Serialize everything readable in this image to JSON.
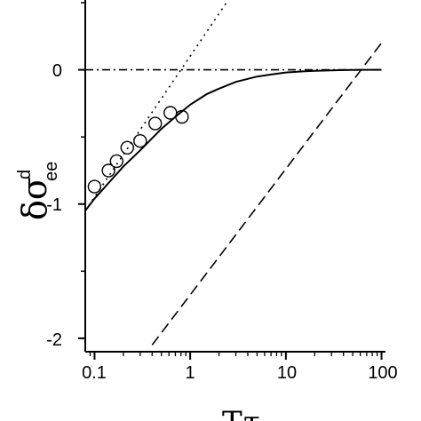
{
  "chart_data": {
    "type": "scatter",
    "title": "",
    "xlabel": {
      "main": "T",
      "symbol": "τ"
    },
    "ylabel": {
      "main": "δσ",
      "superscript": "d",
      "subscript": "ee"
    },
    "xscale": "log",
    "xlim": [
      0.08,
      110
    ],
    "ylim": [
      -2.1,
      0.52
    ],
    "xticks": [
      0.1,
      1,
      10,
      100
    ],
    "xtick_labels": [
      "0.1",
      "1",
      "10",
      "100"
    ],
    "yticks": [
      0,
      -1,
      -2
    ],
    "ytick_labels": [
      "0",
      "-1",
      "-2"
    ],
    "grid": false,
    "legend": "none",
    "series": [
      {
        "style": "markers",
        "marker": "open-circle",
        "x": [
          0.1,
          0.14,
          0.17,
          0.22,
          0.3,
          0.43,
          0.62,
          0.82
        ],
        "y": [
          -0.87,
          -0.75,
          -0.68,
          -0.58,
          -0.53,
          -0.4,
          -0.32,
          -0.35
        ]
      },
      {
        "style": "solid",
        "x": [
          0.08,
          0.1,
          0.15,
          0.2,
          0.3,
          0.5,
          0.7,
          1,
          1.5,
          2,
          3,
          5,
          7,
          10,
          15,
          20,
          30,
          50,
          70,
          100
        ],
        "y": [
          -1.05,
          -0.96,
          -0.82,
          -0.72,
          -0.6,
          -0.44,
          -0.35,
          -0.26,
          -0.18,
          -0.14,
          -0.09,
          -0.05,
          -0.035,
          -0.02,
          -0.012,
          -0.008,
          -0.004,
          -0.001,
          0.0,
          0.0
        ]
      },
      {
        "style": "dotted",
        "x": [
          0.08,
          2.5
        ],
        "y": [
          -1.05,
          0.52
        ]
      },
      {
        "style": "dashed",
        "x": [
          0.4,
          100
        ],
        "y": [
          -2.05,
          0.2
        ]
      },
      {
        "style": "dash-dot",
        "x": [
          0.08,
          100
        ],
        "y": [
          0,
          0
        ]
      }
    ]
  }
}
